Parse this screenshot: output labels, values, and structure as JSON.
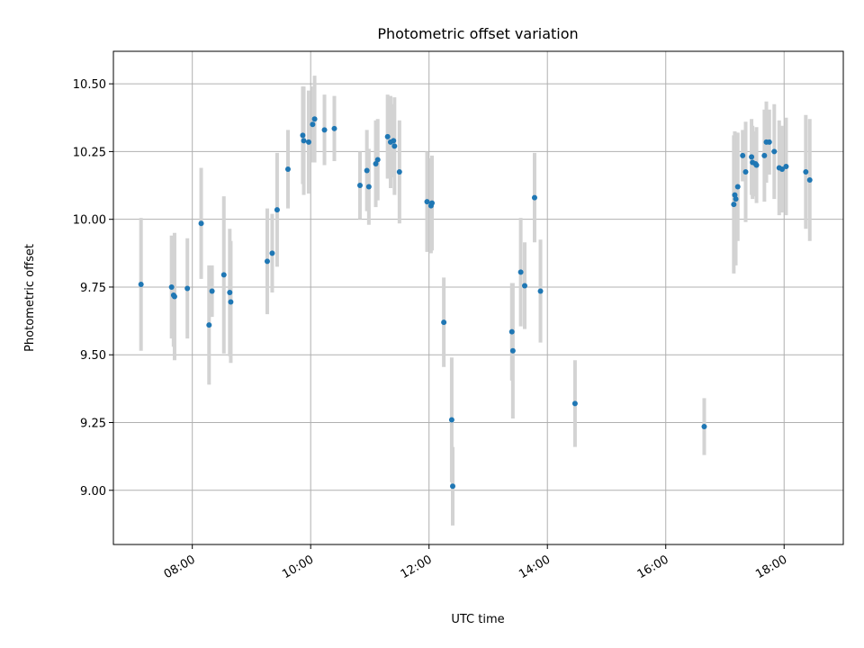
{
  "chart_data": {
    "type": "scatter",
    "title": "Photometric offset variation",
    "xlabel": "UTC time",
    "ylabel": "Photometric offset",
    "xlim": [
      "06:40",
      "19:00"
    ],
    "ylim": [
      8.8,
      10.62
    ],
    "grid": true,
    "xticks": [
      "08:00",
      "10:00",
      "12:00",
      "14:00",
      "16:00",
      "18:00"
    ],
    "yticks": [
      "9.00",
      "9.25",
      "9.50",
      "9.75",
      "10.00",
      "10.25",
      "10.50"
    ],
    "colors": {
      "points": "#1f77b4",
      "errorbars": "#d3d3d3",
      "grid": "#b0b0b0"
    },
    "series": [
      {
        "points": [
          {
            "x": "07:08",
            "y": 9.76,
            "yerr": 0.245
          },
          {
            "x": "07:39",
            "y": 9.75,
            "yerr": 0.19
          },
          {
            "x": "07:41",
            "y": 9.72,
            "yerr": 0.19
          },
          {
            "x": "07:42",
            "y": 9.715,
            "yerr": 0.235
          },
          {
            "x": "07:55",
            "y": 9.745,
            "yerr": 0.185
          },
          {
            "x": "08:09",
            "y": 9.985,
            "yerr": 0.205
          },
          {
            "x": "08:17",
            "y": 9.61,
            "yerr": 0.22
          },
          {
            "x": "08:20",
            "y": 9.735,
            "yerr": 0.095
          },
          {
            "x": "08:32",
            "y": 9.795,
            "yerr": 0.29
          },
          {
            "x": "08:38",
            "y": 9.73,
            "yerr": 0.235
          },
          {
            "x": "08:39",
            "y": 9.695,
            "yerr": 0.225
          },
          {
            "x": "09:16",
            "y": 9.845,
            "yerr": 0.195
          },
          {
            "x": "09:21",
            "y": 9.875,
            "yerr": 0.145
          },
          {
            "x": "09:26",
            "y": 10.035,
            "yerr": 0.21
          },
          {
            "x": "09:37",
            "y": 10.185,
            "yerr": 0.145
          },
          {
            "x": "09:52",
            "y": 10.31,
            "yerr": 0.18
          },
          {
            "x": "09:53",
            "y": 10.29,
            "yerr": 0.2
          },
          {
            "x": "09:58",
            "y": 10.285,
            "yerr": 0.19
          },
          {
            "x": "10:02",
            "y": 10.35,
            "yerr": 0.14
          },
          {
            "x": "10:04",
            "y": 10.37,
            "yerr": 0.16
          },
          {
            "x": "10:14",
            "y": 10.33,
            "yerr": 0.13
          },
          {
            "x": "10:24",
            "y": 10.335,
            "yerr": 0.12
          },
          {
            "x": "10:50",
            "y": 10.125,
            "yerr": 0.125
          },
          {
            "x": "10:57",
            "y": 10.18,
            "yerr": 0.15
          },
          {
            "x": "10:59",
            "y": 10.12,
            "yerr": 0.14
          },
          {
            "x": "11:06",
            "y": 10.205,
            "yerr": 0.16
          },
          {
            "x": "11:08",
            "y": 10.22,
            "yerr": 0.15
          },
          {
            "x": "11:18",
            "y": 10.305,
            "yerr": 0.155
          },
          {
            "x": "11:21",
            "y": 10.285,
            "yerr": 0.17
          },
          {
            "x": "11:24",
            "y": 10.29,
            "yerr": 0.135
          },
          {
            "x": "11:25",
            "y": 10.27,
            "yerr": 0.18
          },
          {
            "x": "11:30",
            "y": 10.175,
            "yerr": 0.19
          },
          {
            "x": "11:58",
            "y": 10.065,
            "yerr": 0.185
          },
          {
            "x": "12:02",
            "y": 10.05,
            "yerr": 0.175
          },
          {
            "x": "12:03",
            "y": 10.06,
            "yerr": 0.175
          },
          {
            "x": "12:15",
            "y": 9.62,
            "yerr": 0.165
          },
          {
            "x": "12:23",
            "y": 9.26,
            "yerr": 0.23
          },
          {
            "x": "12:24",
            "y": 9.015,
            "yerr": 0.145
          },
          {
            "x": "13:24",
            "y": 9.585,
            "yerr": 0.18
          },
          {
            "x": "13:25",
            "y": 9.515,
            "yerr": 0.25
          },
          {
            "x": "13:33",
            "y": 9.805,
            "yerr": 0.2
          },
          {
            "x": "13:37",
            "y": 9.755,
            "yerr": 0.16
          },
          {
            "x": "13:47",
            "y": 10.08,
            "yerr": 0.165
          },
          {
            "x": "13:53",
            "y": 9.735,
            "yerr": 0.19
          },
          {
            "x": "14:28",
            "y": 9.32,
            "yerr": 0.16
          },
          {
            "x": "16:39",
            "y": 9.235,
            "yerr": 0.105
          },
          {
            "x": "17:09",
            "y": 10.055,
            "yerr": 0.255
          },
          {
            "x": "17:10",
            "y": 10.09,
            "yerr": 0.235
          },
          {
            "x": "17:11",
            "y": 10.075,
            "yerr": 0.245
          },
          {
            "x": "17:13",
            "y": 10.12,
            "yerr": 0.2
          },
          {
            "x": "17:18",
            "y": 10.235,
            "yerr": 0.095
          },
          {
            "x": "17:21",
            "y": 10.175,
            "yerr": 0.185
          },
          {
            "x": "17:27",
            "y": 10.23,
            "yerr": 0.14
          },
          {
            "x": "17:28",
            "y": 10.21,
            "yerr": 0.135
          },
          {
            "x": "17:31",
            "y": 10.205,
            "yerr": 0.12
          },
          {
            "x": "17:32",
            "y": 10.2,
            "yerr": 0.14
          },
          {
            "x": "17:40",
            "y": 10.235,
            "yerr": 0.17
          },
          {
            "x": "17:42",
            "y": 10.285,
            "yerr": 0.15
          },
          {
            "x": "17:45",
            "y": 10.285,
            "yerr": 0.12
          },
          {
            "x": "17:50",
            "y": 10.25,
            "yerr": 0.175
          },
          {
            "x": "17:55",
            "y": 10.19,
            "yerr": 0.175
          },
          {
            "x": "17:58",
            "y": 10.185,
            "yerr": 0.16
          },
          {
            "x": "18:02",
            "y": 10.195,
            "yerr": 0.18
          },
          {
            "x": "18:22",
            "y": 10.175,
            "yerr": 0.21
          },
          {
            "x": "18:26",
            "y": 10.145,
            "yerr": 0.225
          }
        ]
      }
    ]
  }
}
